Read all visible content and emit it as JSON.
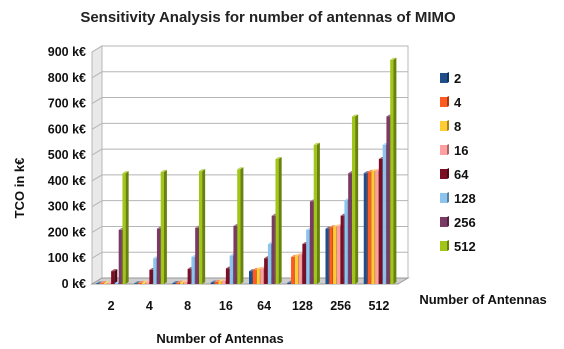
{
  "chart_data": {
    "type": "bar",
    "style": "3d-clustered",
    "title": "Sensitivity Analysis for number of antennas of MIMO",
    "xlabel": "Number of Antennas",
    "ylabel": "TCO in k€",
    "legend_title": "Number of Antennas",
    "legend_position": "right",
    "grid": true,
    "ylim": [
      0,
      900
    ],
    "yticks": [
      {
        "value": 0,
        "label": "0 k€"
      },
      {
        "value": 100,
        "label": "100 k€"
      },
      {
        "value": 200,
        "label": "200 k€"
      },
      {
        "value": 300,
        "label": "300 k€"
      },
      {
        "value": 400,
        "label": "400 k€"
      },
      {
        "value": 500,
        "label": "500 k€"
      },
      {
        "value": 600,
        "label": "600 k€"
      },
      {
        "value": 700,
        "label": "700 k€"
      },
      {
        "value": 800,
        "label": "800 k€"
      },
      {
        "value": 900,
        "label": "900 k€"
      }
    ],
    "categories": [
      "2",
      "4",
      "8",
      "16",
      "64",
      "128",
      "256",
      "512"
    ],
    "series": [
      {
        "name": "2",
        "color": "#1f4e8c",
        "values": [
          2,
          3,
          4,
          6,
          50,
          5,
          215,
          430
        ]
      },
      {
        "name": "4",
        "color": "#ff5a1f",
        "values": [
          3,
          4,
          5,
          8,
          55,
          105,
          220,
          435
        ]
      },
      {
        "name": "8",
        "color": "#ffcc33",
        "values": [
          3,
          5,
          6,
          10,
          58,
          110,
          222,
          438
        ]
      },
      {
        "name": "16",
        "color": "#ff9fa0",
        "values": [
          4,
          6,
          8,
          12,
          60,
          115,
          225,
          440
        ]
      },
      {
        "name": "64",
        "color": "#7b0d24",
        "values": [
          50,
          55,
          58,
          60,
          100,
          155,
          265,
          485
        ]
      },
      {
        "name": "128",
        "color": "#8cc4f0",
        "values": [
          4,
          100,
          105,
          110,
          155,
          210,
          325,
          540
        ]
      },
      {
        "name": "256",
        "color": "#7a3a63",
        "values": [
          210,
          215,
          218,
          225,
          265,
          320,
          430,
          650
        ]
      },
      {
        "name": "512",
        "color": "#a2c617",
        "values": [
          430,
          435,
          438,
          445,
          485,
          540,
          650,
          870
        ]
      }
    ]
  }
}
